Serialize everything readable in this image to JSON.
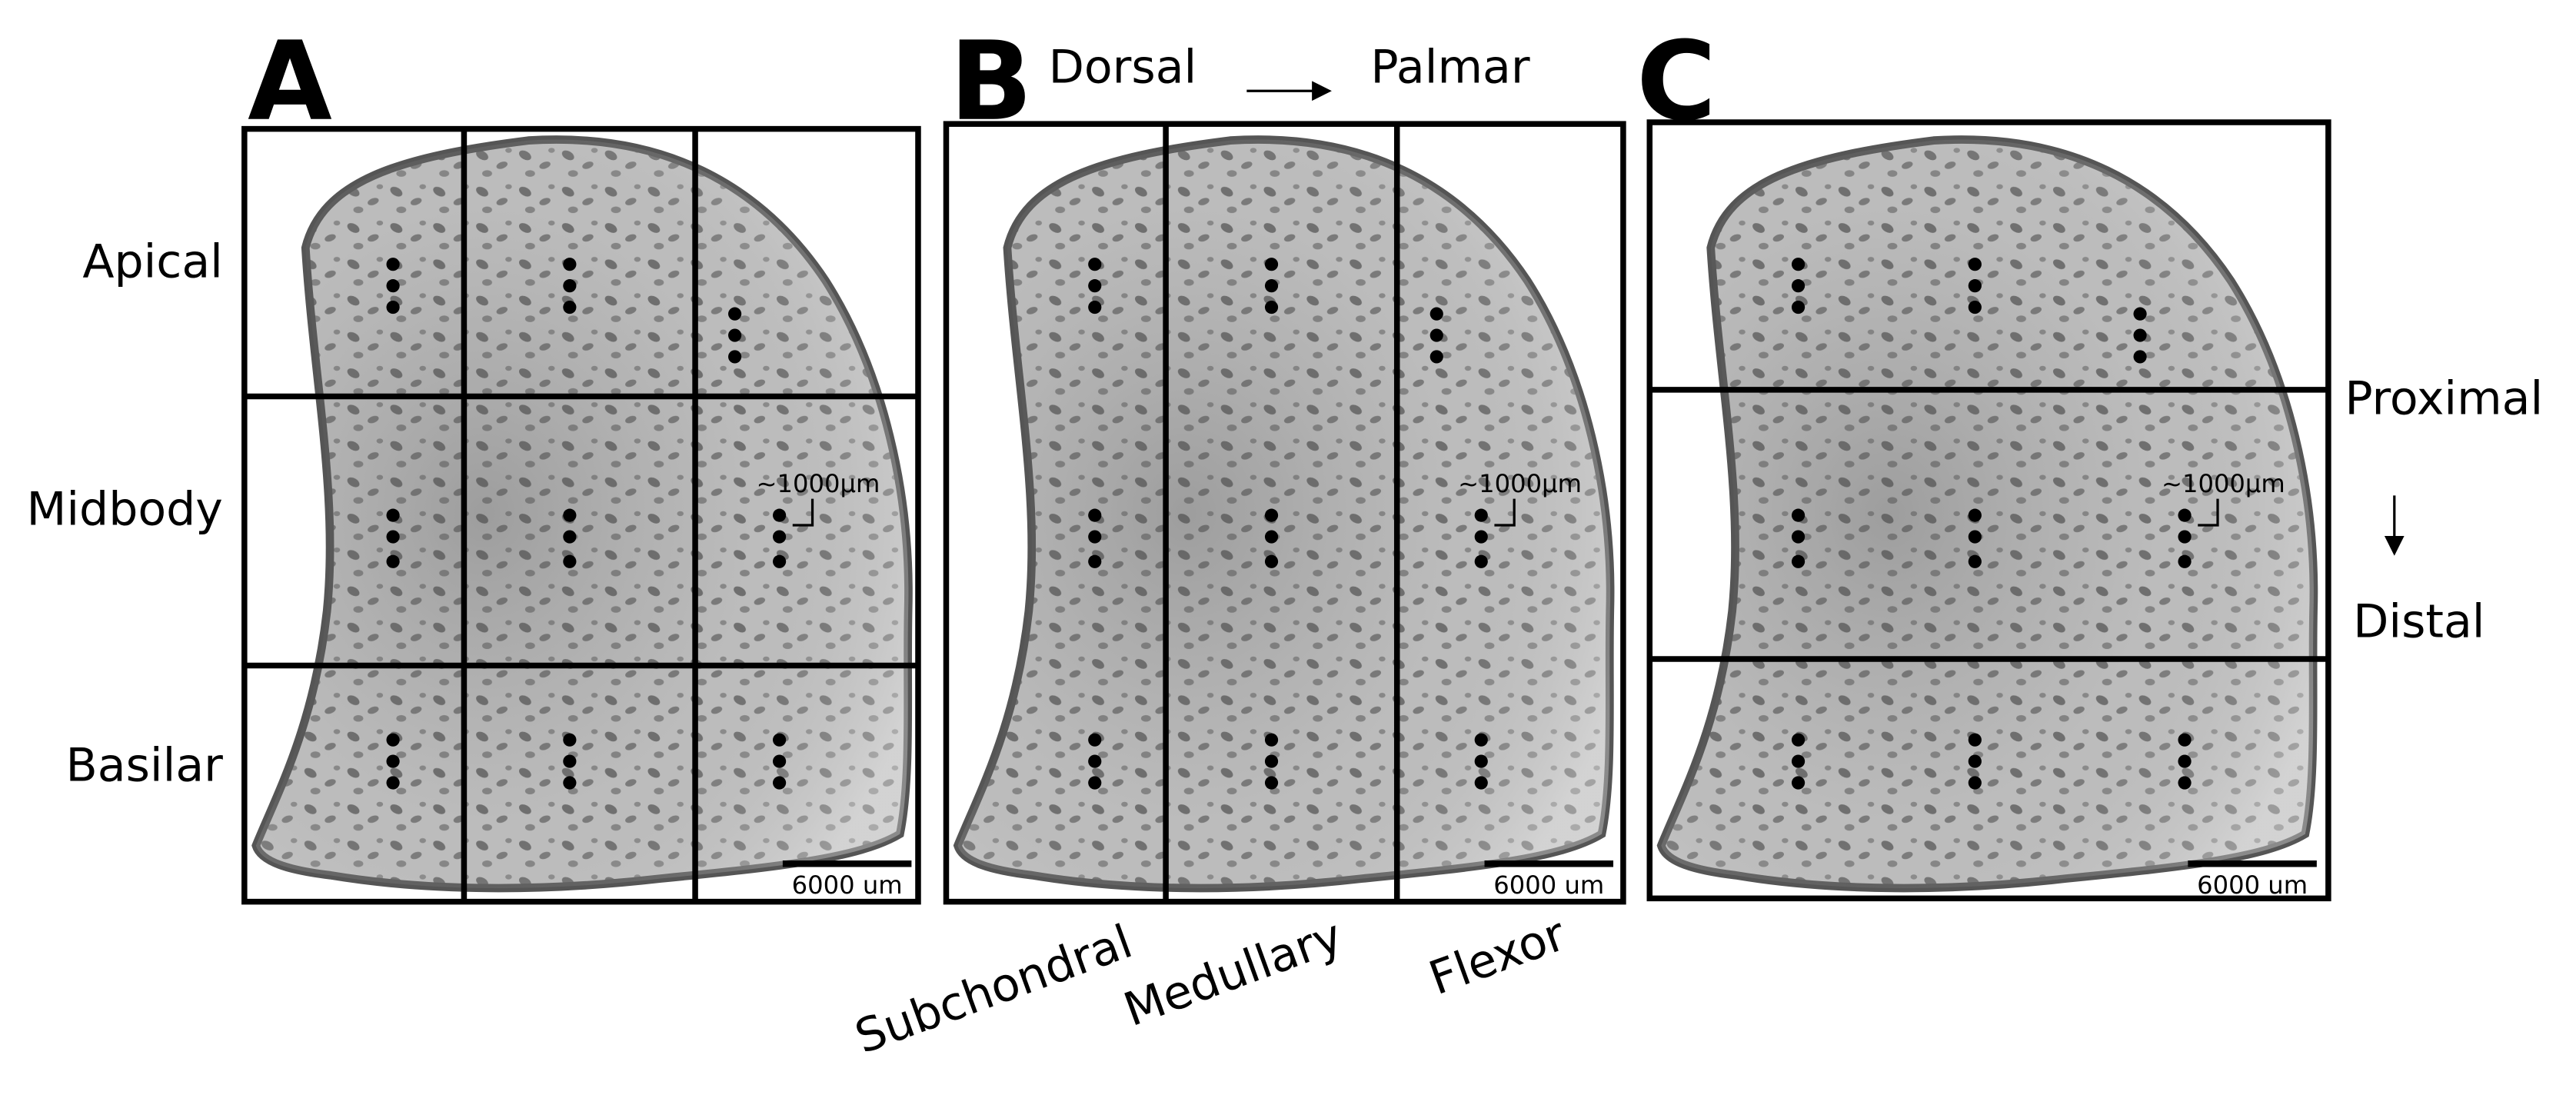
{
  "panels": [
    {
      "letter": "A",
      "spacing_label": "~1000µm",
      "scale_bar": "6000 um"
    },
    {
      "letter": "B",
      "spacing_label": "~1000µm",
      "scale_bar": "6000 um"
    },
    {
      "letter": "C",
      "spacing_label": "~1000µm",
      "scale_bar": "6000 um"
    }
  ],
  "row_labels": [
    "Apical",
    "Midbody",
    "Basilar"
  ],
  "top_direction": {
    "from": "Dorsal",
    "to": "Palmar"
  },
  "column_labels": [
    "Subchondral",
    "Medullary",
    "Flexor"
  ],
  "side_direction": {
    "from": "Proximal",
    "to": "Distal"
  }
}
